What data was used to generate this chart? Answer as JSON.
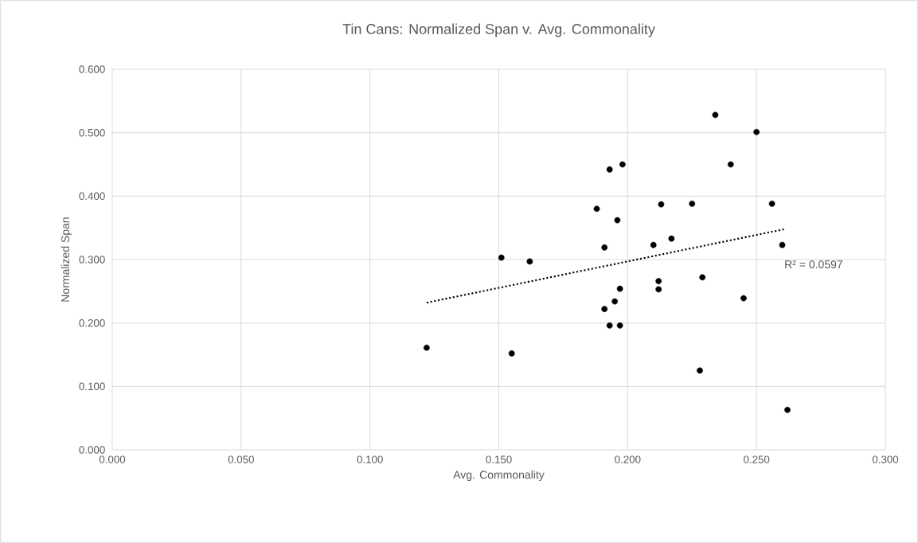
{
  "chart_data": {
    "type": "scatter",
    "title": "Tin Cans: Normalized Span v. Avg. Commonality",
    "xlabel": "Avg. Commonality",
    "ylabel": "Normalized Span",
    "xlim": [
      0,
      0.3
    ],
    "ylim": [
      0,
      0.6
    ],
    "xticks": [
      {
        "value": 0,
        "label": "0.000"
      },
      {
        "value": 0.05,
        "label": "0.050"
      },
      {
        "value": 0.1,
        "label": "0.100"
      },
      {
        "value": 0.15,
        "label": "0.150"
      },
      {
        "value": 0.2,
        "label": "0.200"
      },
      {
        "value": 0.25,
        "label": "0.250"
      },
      {
        "value": 0.3,
        "label": "0.300"
      }
    ],
    "yticks": [
      {
        "value": 0,
        "label": "0.000"
      },
      {
        "value": 0.1,
        "label": "0.100"
      },
      {
        "value": 0.2,
        "label": "0.200"
      },
      {
        "value": 0.3,
        "label": "0.300"
      },
      {
        "value": 0.4,
        "label": "0.400"
      },
      {
        "value": 0.5,
        "label": "0.500"
      },
      {
        "value": 0.6,
        "label": "0.600"
      }
    ],
    "grid": true,
    "marker": "circle",
    "series": [
      {
        "color": "#000000",
        "x": [
          0.122,
          0.155,
          0.151,
          0.162,
          0.193,
          0.198,
          0.188,
          0.196,
          0.191,
          0.197,
          0.195,
          0.191,
          0.193,
          0.197,
          0.213,
          0.225,
          0.217,
          0.21,
          0.212,
          0.212,
          0.229,
          0.234,
          0.25,
          0.24,
          0.256,
          0.26,
          0.245,
          0.228,
          0.262
        ],
        "values": [
          0.161,
          0.152,
          0.303,
          0.297,
          0.442,
          0.45,
          0.38,
          0.362,
          0.319,
          0.254,
          0.234,
          0.222,
          0.196,
          0.196,
          0.387,
          0.388,
          0.333,
          0.323,
          0.266,
          0.253,
          0.272,
          0.528,
          0.501,
          0.45,
          0.388,
          0.323,
          0.239,
          0.125,
          0.063
        ]
      },
      {
        "type": "line",
        "color": "#000000",
        "line_style": "dotted",
        "marker": "none",
        "x": [
          0.122,
          0.261
        ],
        "values": [
          0.232,
          0.348
        ]
      }
    ],
    "annotations": [
      {
        "text": "R² = 0.0597",
        "x": 0.261,
        "y": 0.348
      }
    ]
  }
}
